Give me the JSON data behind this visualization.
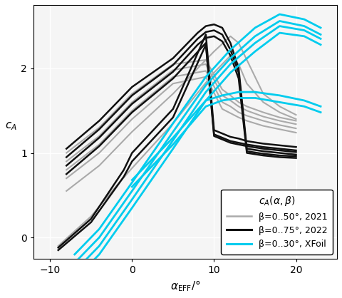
{
  "title": "",
  "xlabel": "α_{EFF}/°",
  "ylabel": "c_A",
  "xlim": [
    -12,
    25
  ],
  "ylim": [
    -0.25,
    2.75
  ],
  "xticks": [
    -10,
    0,
    10,
    20
  ],
  "yticks": [
    0,
    1,
    2
  ],
  "gray_color": "#aaaaaa",
  "black_color": "#111111",
  "cyan_color": "#00ccee",
  "legend_items": [
    {
      "label": "β=0..50°, 2021",
      "color": "#aaaaaa"
    },
    {
      "label": "β=0..75°, 2022",
      "color": "#111111"
    },
    {
      "label": "β=0..30°, XFoil",
      "color": "#00ccee"
    }
  ],
  "gray_curves": [
    {
      "x": [
        -8,
        -4,
        0,
        5,
        9,
        11,
        12,
        13,
        14,
        16,
        18,
        20
      ],
      "y": [
        1.0,
        1.3,
        1.7,
        2.05,
        2.1,
        1.75,
        1.68,
        1.6,
        1.55,
        1.48,
        1.42,
        1.38
      ]
    },
    {
      "x": [
        -8,
        -4,
        0,
        5,
        9,
        11,
        12,
        13,
        14,
        16,
        18,
        20
      ],
      "y": [
        0.9,
        1.2,
        1.6,
        1.98,
        2.05,
        1.68,
        1.62,
        1.55,
        1.5,
        1.43,
        1.38,
        1.34
      ]
    },
    {
      "x": [
        -8,
        -4,
        0,
        5,
        9,
        11,
        12,
        13,
        14,
        16,
        18,
        20
      ],
      "y": [
        0.8,
        1.1,
        1.5,
        1.9,
        1.97,
        1.6,
        1.55,
        1.48,
        1.44,
        1.38,
        1.33,
        1.29
      ]
    },
    {
      "x": [
        -8,
        -4,
        0,
        5,
        9,
        11,
        12,
        13,
        14,
        16,
        18,
        20
      ],
      "y": [
        0.7,
        1.0,
        1.4,
        1.82,
        1.9,
        1.52,
        1.47,
        1.42,
        1.38,
        1.32,
        1.28,
        1.24
      ]
    },
    {
      "x": [
        -8,
        -4,
        0,
        5,
        10,
        12,
        13,
        14,
        16,
        18,
        20
      ],
      "y": [
        0.55,
        0.85,
        1.25,
        1.7,
        2.2,
        2.38,
        2.3,
        2.1,
        1.7,
        1.55,
        1.45
      ]
    },
    {
      "x": [
        -9,
        -5,
        -2,
        0,
        5,
        10,
        12,
        13,
        14,
        16,
        18,
        20
      ],
      "y": [
        -0.1,
        0.25,
        0.6,
        0.82,
        1.35,
        1.95,
        2.15,
        2.05,
        1.82,
        1.6,
        1.48,
        1.4
      ]
    }
  ],
  "black_curves": [
    {
      "x": [
        -8,
        -4,
        0,
        5,
        8,
        9,
        10,
        11,
        12,
        13,
        14,
        16,
        18,
        20
      ],
      "y": [
        1.05,
        1.38,
        1.78,
        2.12,
        2.42,
        2.5,
        2.52,
        2.48,
        2.3,
        2.0,
        1.05,
        1.02,
        1.0,
        0.98
      ]
    },
    {
      "x": [
        -8,
        -4,
        0,
        5,
        8,
        9,
        10,
        11,
        12,
        13,
        14,
        16,
        18,
        20
      ],
      "y": [
        0.95,
        1.28,
        1.68,
        2.04,
        2.35,
        2.43,
        2.45,
        2.4,
        2.22,
        1.95,
        1.02,
        0.99,
        0.97,
        0.96
      ]
    },
    {
      "x": [
        -8,
        -4,
        0,
        5,
        8,
        9,
        10,
        11,
        12,
        13,
        14,
        16,
        18,
        20
      ],
      "y": [
        0.85,
        1.18,
        1.58,
        1.96,
        2.28,
        2.36,
        2.38,
        2.32,
        2.15,
        1.88,
        1.0,
        0.97,
        0.95,
        0.94
      ]
    },
    {
      "x": [
        -8,
        -4,
        0,
        5,
        9,
        10,
        11,
        12,
        13,
        14,
        16,
        18,
        20
      ],
      "y": [
        0.75,
        1.08,
        1.48,
        1.88,
        2.3,
        1.22,
        1.18,
        1.14,
        1.12,
        1.1,
        1.07,
        1.05,
        1.03
      ]
    },
    {
      "x": [
        -9,
        -5,
        -1,
        0,
        5,
        9,
        10,
        11,
        12,
        13,
        14,
        16,
        18,
        20
      ],
      "y": [
        -0.15,
        0.18,
        0.72,
        0.9,
        1.42,
        2.28,
        1.2,
        1.16,
        1.12,
        1.1,
        1.08,
        1.05,
        1.03,
        1.01
      ]
    },
    {
      "x": [
        -9,
        -5,
        -1,
        0,
        5,
        9,
        10,
        11,
        12,
        13,
        14,
        16,
        18,
        20
      ],
      "y": [
        -0.12,
        0.22,
        0.8,
        1.0,
        1.52,
        2.4,
        1.27,
        1.23,
        1.19,
        1.17,
        1.14,
        1.11,
        1.09,
        1.07
      ]
    }
  ],
  "cyan_curves": [
    {
      "x": [
        -7,
        -4,
        0,
        5,
        9,
        12,
        15,
        18,
        21,
        23
      ],
      "y": [
        -0.5,
        -0.2,
        0.35,
        1.05,
        1.62,
        1.95,
        2.2,
        2.42,
        2.38,
        2.28
      ]
    },
    {
      "x": [
        -7,
        -4,
        0,
        5,
        9,
        12,
        15,
        18,
        21,
        23
      ],
      "y": [
        -0.4,
        -0.1,
        0.45,
        1.15,
        1.72,
        2.05,
        2.3,
        2.5,
        2.45,
        2.35
      ]
    },
    {
      "x": [
        -7,
        -4,
        0,
        5,
        9,
        12,
        15,
        18,
        21,
        23
      ],
      "y": [
        -0.3,
        0.0,
        0.55,
        1.25,
        1.8,
        2.12,
        2.38,
        2.56,
        2.5,
        2.4
      ]
    },
    {
      "x": [
        -7,
        -4,
        0,
        5,
        9,
        12,
        15,
        18,
        21,
        23
      ],
      "y": [
        -0.2,
        0.1,
        0.65,
        1.35,
        1.9,
        2.22,
        2.48,
        2.64,
        2.58,
        2.48
      ]
    },
    {
      "x": [
        0,
        5,
        9,
        11,
        13,
        15,
        18,
        21,
        23
      ],
      "y": [
        0.6,
        1.1,
        1.55,
        1.62,
        1.65,
        1.65,
        1.6,
        1.55,
        1.48
      ]
    },
    {
      "x": [
        0,
        5,
        9,
        11,
        13,
        15,
        18,
        21,
        23
      ],
      "y": [
        0.68,
        1.18,
        1.62,
        1.68,
        1.72,
        1.72,
        1.68,
        1.62,
        1.55
      ]
    }
  ]
}
